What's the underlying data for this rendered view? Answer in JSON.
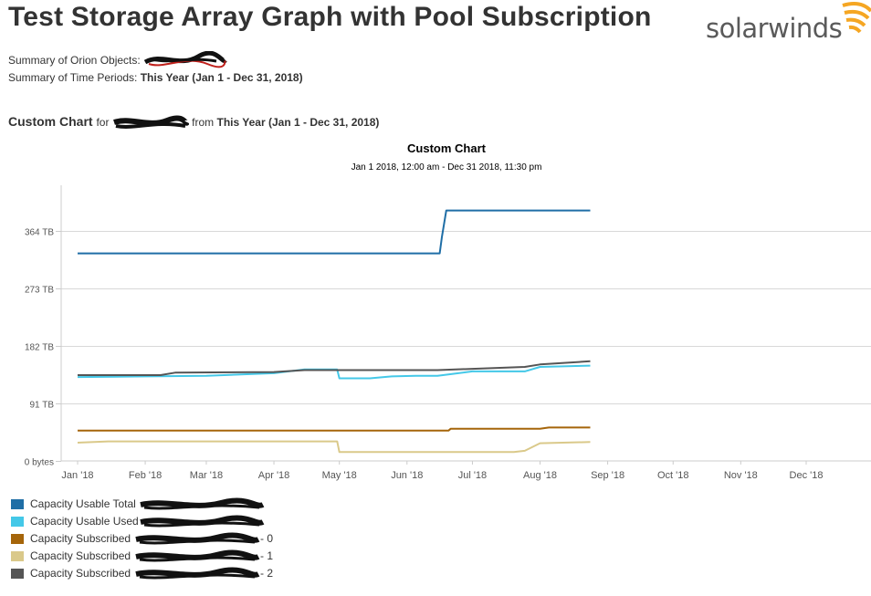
{
  "page": {
    "title": "Test Storage Array Graph with Pool Subscription",
    "logo_text": "solarwinds",
    "summary_objects_label": "Summary of Orion Objects:",
    "summary_time_label": "Summary of Time Periods:",
    "summary_time_value": "This Year (Jan 1 - Dec 31, 2018)",
    "section_title": "Custom Chart",
    "section_for": "for",
    "section_from": "from",
    "section_period": "This Year (Jan 1 - Dec 31, 2018)",
    "colors": {
      "accent_orange": "#f5a623",
      "logo_gray": "#5a5a5a",
      "redaction": "#111111"
    }
  },
  "chart_data": {
    "type": "line",
    "title": "Custom Chart",
    "subtitle": "Jan 1 2018, 12:00 am - Dec 31 2018, 11:30 pm",
    "x_domain": [
      "2018-01-01",
      "2018-12-31"
    ],
    "x_ticks": [
      "Jan '18",
      "Feb '18",
      "Mar '18",
      "Apr '18",
      "May '18",
      "Jun '18",
      "Jul '18",
      "Aug '18",
      "Sep '18",
      "Oct '18",
      "Nov '18",
      "Dec '18"
    ],
    "y_range": [
      0,
      437
    ],
    "y_ticks": [
      {
        "value": 0,
        "label": "0 bytes"
      },
      {
        "value": 91,
        "label": "91 TB"
      },
      {
        "value": 182,
        "label": "182 TB"
      },
      {
        "value": 273,
        "label": "273 TB"
      },
      {
        "value": 364,
        "label": "364 TB"
      }
    ],
    "grid": true,
    "series": [
      {
        "name": "Capacity Usable Total",
        "color": "#1f6ea6",
        "points": [
          [
            "2018-01-01",
            329
          ],
          [
            "2018-06-16",
            329
          ],
          [
            "2018-06-17",
            355
          ],
          [
            "2018-06-19",
            397
          ],
          [
            "2018-08-24",
            397
          ]
        ]
      },
      {
        "name": "Capacity Usable Used",
        "color": "#44c8e8",
        "points": [
          [
            "2018-01-01",
            133
          ],
          [
            "2018-02-01",
            134
          ],
          [
            "2018-03-01",
            135
          ],
          [
            "2018-04-01",
            139
          ],
          [
            "2018-04-15",
            145
          ],
          [
            "2018-04-30",
            145
          ],
          [
            "2018-05-01",
            131
          ],
          [
            "2018-05-15",
            131
          ],
          [
            "2018-05-25",
            134
          ],
          [
            "2018-06-05",
            135
          ],
          [
            "2018-06-15",
            135
          ],
          [
            "2018-07-01",
            142
          ],
          [
            "2018-07-25",
            142
          ],
          [
            "2018-08-01",
            149
          ],
          [
            "2018-08-24",
            151
          ]
        ]
      },
      {
        "name": "Capacity Subscribed",
        "suffix": "- 0",
        "color": "#a5650a",
        "points": [
          [
            "2018-01-01",
            48
          ],
          [
            "2018-06-20",
            48
          ],
          [
            "2018-06-21",
            51
          ],
          [
            "2018-08-01",
            51
          ],
          [
            "2018-08-05",
            53
          ],
          [
            "2018-08-24",
            53
          ]
        ]
      },
      {
        "name": "Capacity Subscribed",
        "suffix": "- 1",
        "color": "#dac98a",
        "points": [
          [
            "2018-01-01",
            29
          ],
          [
            "2018-01-15",
            31
          ],
          [
            "2018-04-30",
            31
          ],
          [
            "2018-05-01",
            14
          ],
          [
            "2018-07-20",
            14
          ],
          [
            "2018-07-25",
            16
          ],
          [
            "2018-08-01",
            28
          ],
          [
            "2018-08-24",
            30
          ]
        ]
      },
      {
        "name": "Capacity Subscribed",
        "suffix": "- 2",
        "color": "#555555",
        "points": [
          [
            "2018-01-01",
            136
          ],
          [
            "2018-02-08",
            136
          ],
          [
            "2018-02-15",
            140
          ],
          [
            "2018-04-01",
            141
          ],
          [
            "2018-04-15",
            144
          ],
          [
            "2018-06-15",
            144
          ],
          [
            "2018-07-01",
            146
          ],
          [
            "2018-07-25",
            149
          ],
          [
            "2018-08-01",
            153
          ],
          [
            "2018-08-24",
            158
          ]
        ]
      }
    ]
  }
}
